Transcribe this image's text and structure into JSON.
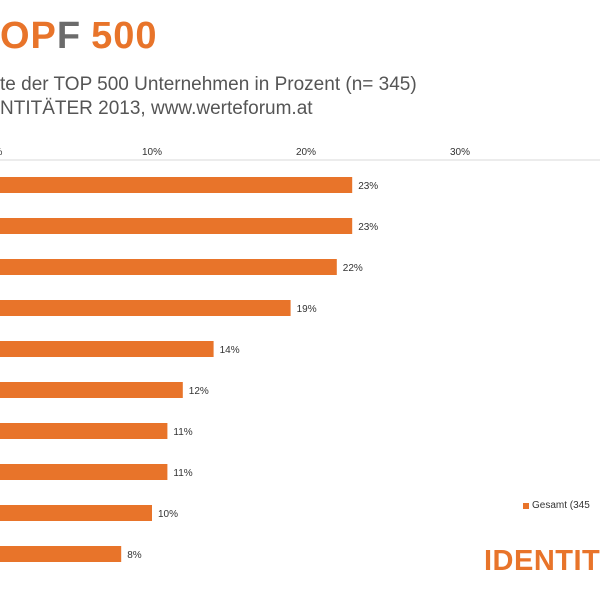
{
  "header": {
    "brand_part1": "OP",
    "brand_part2": "F",
    "brand_part3": "500",
    "subtitle_line1": "te der TOP 500 Unternehmen in Prozent (n= 345)",
    "subtitle_line2": "NTITÄTER 2013, www.werteforum.at"
  },
  "legend": {
    "label": "Gesamt (345"
  },
  "logo": {
    "text": "IDENTIT"
  },
  "colors": {
    "accent": "#E8742A",
    "text": "#555555",
    "grid": "#d9d9d9"
  },
  "chart_data": {
    "type": "bar",
    "orientation": "horizontal",
    "xticks": [
      "%",
      "10%",
      "20%",
      "30%"
    ],
    "xlim": [
      0,
      40
    ],
    "series": [
      {
        "name": "Gesamt (345",
        "values": [
          23,
          23,
          22,
          19,
          14,
          12,
          11,
          11,
          10,
          8
        ],
        "labels": [
          "23%",
          "23%",
          "22%",
          "19%",
          "14%",
          "12%",
          "11%",
          "11%",
          "10%",
          "8%"
        ]
      }
    ],
    "legend_position": "bottom-right",
    "grid": true
  }
}
